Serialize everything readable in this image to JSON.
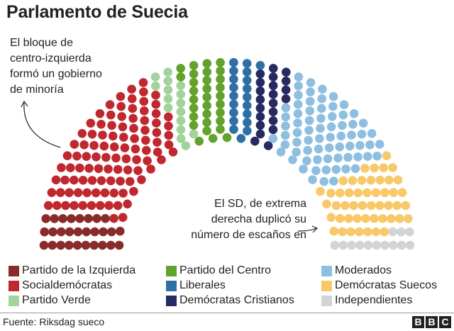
{
  "title": "Parlamento de Suecia",
  "annotations": {
    "left": [
      "El bloque de",
      "centro-izquierda",
      "formó un gobierno",
      "de minoría"
    ],
    "right": [
      "El SD, de extrema",
      "derecha duplicó su",
      "número de escaños en"
    ]
  },
  "chart_data": {
    "type": "parliament",
    "total_seats": 349,
    "parties": [
      {
        "name": "Partido de la Izquierda",
        "seats": 28,
        "color": "#8a2b2b"
      },
      {
        "name": "Socialdemócratas",
        "seats": 100,
        "color": "#c0282f"
      },
      {
        "name": "Partido Verde",
        "seats": 16,
        "color": "#a3d39c"
      },
      {
        "name": "Partido del Centro",
        "seats": 31,
        "color": "#64a22e"
      },
      {
        "name": "Liberales",
        "seats": 20,
        "color": "#2f6fa6"
      },
      {
        "name": "Demócratas Cristianos",
        "seats": 22,
        "color": "#262a61"
      },
      {
        "name": "Moderados",
        "seats": 70,
        "color": "#8fbfe0"
      },
      {
        "name": "Demócratas Suecos",
        "seats": 49,
        "color": "#f7c96a"
      },
      {
        "name": "Independientes",
        "seats": 13,
        "color": "#d3d3d3"
      }
    ],
    "legend_placement": "bottom"
  },
  "footer": {
    "source": "Fuente: Riksdag sueco",
    "logo": [
      "B",
      "B",
      "C"
    ]
  }
}
